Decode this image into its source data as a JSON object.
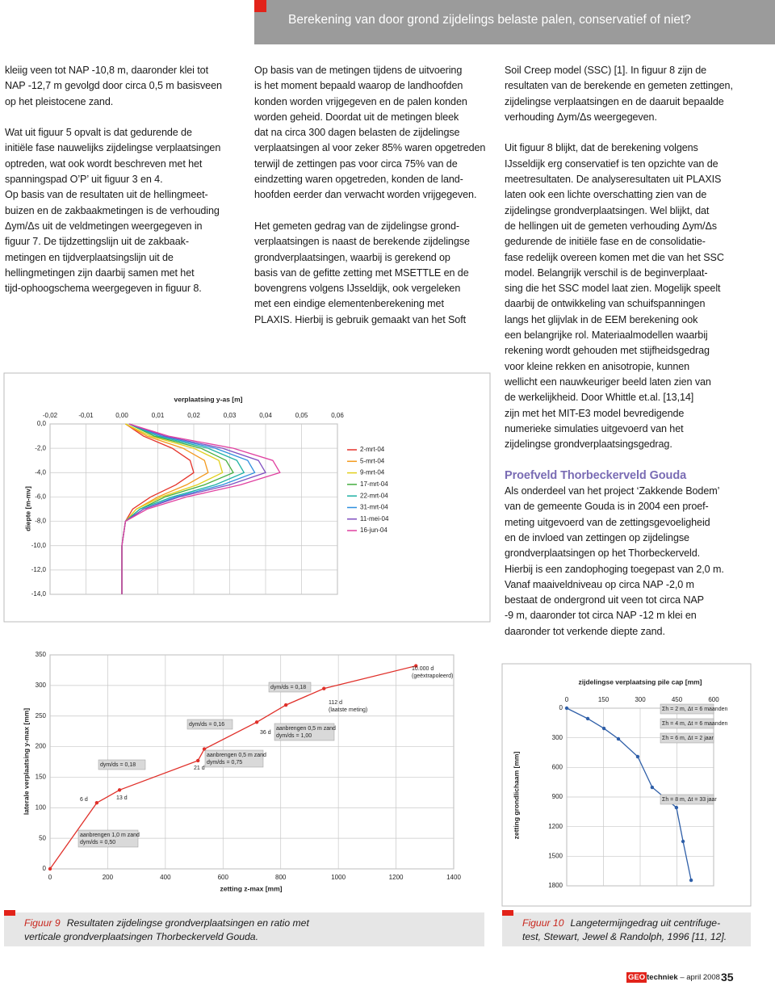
{
  "header": {
    "title": "Berekening van door grond zijdelings belaste palen, conservatief of niet?"
  },
  "columns": [
    [
      {
        "lines": [
          "kleiig veen tot NAP -10,8 m, daaronder klei tot",
          "NAP -12,7 m gevolgd door circa 0,5 m basisveen",
          "op het pleistocene zand."
        ]
      },
      {
        "lines": [
          "Wat uit figuur 5 opvalt is dat gedurende de",
          "initiële fase nauwelijks zijdelingse verplaatsingen",
          "optreden, wat ook wordt beschreven met het",
          "spanningspad O’P’ uit figuur 3 en 4.",
          "Op basis van de resultaten uit de hellingmeet-",
          "buizen en de zakbaakmetingen is de verhouding",
          "Δym/Δs uit de veldmetingen weergegeven in",
          "figuur 7. De tijdzettingslijn uit de zakbaak-",
          "metingen en tijdverplaatsingslijn uit de",
          "hellingmetingen zijn daarbij samen met het",
          "tijd-ophoogschema weergegeven in figuur 8."
        ]
      }
    ],
    [
      {
        "lines": [
          "Op basis van de metingen tijdens de uitvoering",
          "is het moment bepaald waarop de landhoofden",
          "konden worden vrijgegeven en de palen konden",
          "worden geheid. Doordat uit de metingen  bleek",
          "dat na circa 300 dagen belasten de zijdelingse",
          "verplaatsingen al voor zeker 85% waren opgetreden",
          "terwijl de zettingen pas voor circa 75% van de",
          "eindzetting waren opgetreden,  konden de land-",
          "hoofden eerder dan verwacht worden vrijgegeven."
        ]
      },
      {
        "lines": [
          "Het gemeten gedrag van de zijdelingse grond-",
          "verplaatsingen is naast de berekende zijdelingse",
          "grondverplaatsingen, waarbij is gerekend op",
          "basis van de gefitte zetting met MSETTLE en de",
          "bovengrens volgens IJsseldijk, ook vergeleken",
          "met een eindige elementenberekening met",
          "PLAXIS. Hierbij is gebruik gemaakt van het Soft"
        ]
      }
    ],
    [
      {
        "lines": [
          "Soil Creep model (SSC) [1]. In figuur 8 zijn de",
          "resultaten van de berekende en gemeten zettingen,",
          "zijdelingse verplaatsingen en de daaruit bepaalde",
          "verhouding Δym/Δs weergegeven."
        ]
      },
      {
        "lines": [
          "Uit figuur 8 blijkt, dat de berekening volgens",
          "IJsseldijk erg conservatief is ten opzichte van de",
          "meetresultaten. De analyseresultaten uit PLAXIS",
          "laten ook een lichte overschatting zien van de",
          "zijdelingse grondverplaatsingen. Wel blijkt, dat",
          "de hellingen uit de gemeten verhouding Δym/Δs",
          "gedurende de initiële fase en de consolidatie-",
          "fase redelijk overeen komen met die van het SSC",
          "model. Belangrijk verschil is de beginverplaat-",
          "sing die het SSC model laat zien. Mogelijk speelt",
          "daarbij de ontwikkeling van schuifspanningen",
          "langs het glijvlak in de EEM berekening ook",
          "een belangrijke rol. Materiaalmodellen waarbij",
          "rekening wordt gehouden met stijfheidsgedrag",
          "voor kleine rekken en anisotropie, kunnen",
          "wellicht een nauwkeuriger beeld laten zien van",
          "de werkelijkheid. Door Whittle et.al. [13,14]",
          "zijn met het MIT-E3 model bevredigende",
          "numerieke simulaties uitgevoerd van het",
          "zijdelingse grondverplaatsingsgedrag."
        ]
      },
      {
        "heading": "Proefveld Thorbeckerveld Gouda"
      },
      {
        "lines": [
          "Als onderdeel van het project ‘Zakkende Bodem’",
          "van de gemeente Gouda is in 2004 een proef-",
          "meting uitgevoerd van de zettingsgevoeligheid",
          "en de invloed van zettingen op zijdelingse",
          "grondverplaatsingen op het Thorbeckerveld.",
          "Hierbij is een zandophoging toegepast van 2,0 m.",
          "Vanaf maaiveldniveau op circa NAP -2,0 m",
          "bestaat de ondergrond uit veen tot circa NAP",
          "-9 m, daaronder tot circa NAP -12 m klei en",
          "daaronder tot verkende diepte zand."
        ]
      }
    ]
  ],
  "chart_data": [
    {
      "type": "line",
      "xlabel": "verplaatsing y-as [m]",
      "ylabel": "diepte [m-mv]",
      "depth": [
        0,
        -1,
        -2,
        -3,
        -4,
        -5,
        -6,
        -7,
        -8,
        -10,
        -12,
        -14
      ],
      "series": [
        {
          "name": "2-mrt-04",
          "color": "#e5332a",
          "values": [
            0.001,
            0.006,
            0.014,
            0.019,
            0.02,
            0.015,
            0.008,
            0.003,
            0.001,
            0,
            0,
            0
          ]
        },
        {
          "name": "5-mrt-04",
          "color": "#f39a1e",
          "values": [
            0.001,
            0.007,
            0.017,
            0.023,
            0.024,
            0.018,
            0.01,
            0.004,
            0.001,
            0,
            0,
            0
          ]
        },
        {
          "name": "9-mrt-04",
          "color": "#e2cf1c",
          "values": [
            0.001,
            0.008,
            0.02,
            0.027,
            0.028,
            0.021,
            0.011,
            0.004,
            0.001,
            0,
            0,
            0
          ]
        },
        {
          "name": "17-mrt-04",
          "color": "#43ad3f",
          "values": [
            0.002,
            0.009,
            0.022,
            0.029,
            0.031,
            0.023,
            0.012,
            0.005,
            0.001,
            0,
            0,
            0
          ]
        },
        {
          "name": "22-mrt-04",
          "color": "#1fb1a4",
          "values": [
            0.002,
            0.01,
            0.024,
            0.032,
            0.034,
            0.026,
            0.014,
            0.005,
            0.001,
            0,
            0,
            0
          ]
        },
        {
          "name": "31-mrt-04",
          "color": "#2f8fde",
          "values": [
            0.002,
            0.011,
            0.026,
            0.035,
            0.037,
            0.028,
            0.015,
            0.006,
            0.001,
            0,
            0,
            0
          ]
        },
        {
          "name": "11-mei-04",
          "color": "#8050c0",
          "values": [
            0.002,
            0.012,
            0.028,
            0.038,
            0.04,
            0.03,
            0.016,
            0.006,
            0.001,
            0,
            0,
            0
          ]
        },
        {
          "name": "16-jun-04",
          "color": "#e040a0",
          "values": [
            0.002,
            0.013,
            0.031,
            0.042,
            0.044,
            0.033,
            0.018,
            0.007,
            0.001,
            0,
            0,
            0
          ]
        }
      ],
      "xlim": [
        -0.02,
        0.06
      ],
      "xticks": [
        {
          "value": -0.02,
          "label": "-0,02"
        },
        {
          "value": -0.01,
          "label": "-0,01"
        },
        {
          "value": 0,
          "label": "0,00"
        },
        {
          "value": 0.01,
          "label": "0,01"
        },
        {
          "value": 0.02,
          "label": "0,02"
        },
        {
          "value": 0.03,
          "label": "0,03"
        },
        {
          "value": 0.04,
          "label": "0,04"
        },
        {
          "value": 0.05,
          "label": "0,05"
        },
        {
          "value": 0.06,
          "label": "0,06"
        }
      ],
      "ylim": [
        -14,
        0
      ],
      "yticks": [
        {
          "value": 0,
          "label": "0,0"
        },
        {
          "value": -2,
          "label": "-2,0"
        },
        {
          "value": -4,
          "label": "-4,0"
        },
        {
          "value": -6,
          "label": "-6,0"
        },
        {
          "value": -8,
          "label": "-8,0"
        },
        {
          "value": -10,
          "label": "-10,0"
        },
        {
          "value": -12,
          "label": "-12,0"
        },
        {
          "value": -14,
          "label": "-14,0"
        }
      ],
      "xaxis": "top",
      "grid": true,
      "legend": "right"
    },
    {
      "type": "line",
      "xlabel": "zetting z-max [mm]",
      "ylabel": "laterale verplaatsing y-max [mm]",
      "x": [
        0,
        162,
        241,
        513,
        535,
        717,
        818,
        950,
        1269
      ],
      "series": [
        {
          "color": "#e0302a",
          "values": [
            0,
            108,
            129,
            177,
            196,
            240,
            268,
            295,
            332
          ]
        }
      ],
      "xlim": [
        0,
        1400
      ],
      "xticks": [
        0,
        200,
        400,
        600,
        800,
        1000,
        1200,
        1400
      ],
      "ylim": [
        0,
        350
      ],
      "yticks": [
        0,
        50,
        100,
        150,
        200,
        250,
        300,
        350
      ],
      "xaxis": "bottom",
      "grid": true,
      "markers": true,
      "annotations": [
        [
          "6 d"
        ],
        [
          "13 d"
        ],
        [
          "dym/ds = 0,18"
        ],
        [
          "aanbrengen 1,0 m zand",
          "dym/ds = 0,50"
        ],
        [
          "dym/ds = 0,16"
        ],
        [
          "21 d"
        ],
        [
          "aanbrengen 0,5 m zand",
          "dym/ds = 0,75"
        ],
        [
          "36 d"
        ],
        [
          "aanbrengen 0,5 m zand",
          "dym/ds = 1,00"
        ],
        [
          "dym/ds = 0,18"
        ],
        [
          "112 d",
          "(laatste meting)"
        ],
        [
          "10.000 d",
          "(geëxtrapoleerd)"
        ]
      ]
    },
    {
      "type": "line",
      "xlabel": "zijdelingse verplaatsing pile cap [mm]",
      "ylabel": "zetting grondlichaam [mm]",
      "x": [
        0,
        86,
        152,
        211,
        290,
        349,
        409,
        448,
        475,
        508
      ],
      "series": [
        {
          "color": "#2f5fa8",
          "values": [
            0,
            106,
            205,
            311,
            491,
            802,
            925,
            1007,
            1350,
            1743
          ]
        }
      ],
      "xlim": [
        0,
        600
      ],
      "xticks": [
        0,
        150,
        300,
        450,
        600
      ],
      "ylim": [
        1800,
        0
      ],
      "yticks": [
        0,
        300,
        600,
        900,
        1200,
        1500,
        1800
      ],
      "xaxis": "top",
      "grid": true,
      "markers": true,
      "annotations": [
        [
          "Σh = 2 m, Δt = 6 maanden"
        ],
        [
          "Σh = 4 m, Δt = 6 maanden"
        ],
        [
          "Σh = 6 m, Δt = 2 jaar"
        ],
        [
          "Σh = 8 m, Δt = 33 jaar"
        ]
      ]
    }
  ],
  "captions": [
    {
      "label": "Figuur 9",
      "lines": [
        "Resultaten zijdelingse grondverplaatsingen en ratio met",
        "verticale grondverplaatsingen Thorbeckerveld Gouda."
      ]
    },
    {
      "label": "Figuur 10",
      "lines": [
        "Langetermijngedrag uit centrifuge-",
        "test, Stewart, Jewel & Randolph, 1996 [11, 12]."
      ]
    }
  ],
  "footer": {
    "brand_box": "GEO",
    "brand": "techniek",
    "issue": "– april 2008",
    "page": "35"
  }
}
